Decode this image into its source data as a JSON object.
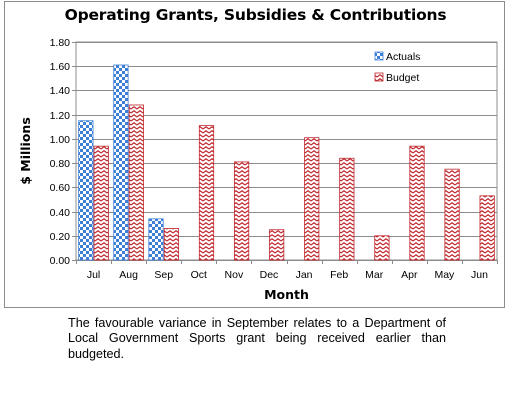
{
  "chart_data": {
    "type": "bar",
    "title": "Operating Grants, Subsidies & Contributions",
    "xlabel": "Month",
    "ylabel": "$ Millions",
    "categories": [
      "Jul",
      "Aug",
      "Sep",
      "Oct",
      "Nov",
      "Dec",
      "Jan",
      "Feb",
      "Mar",
      "Apr",
      "May",
      "Jun"
    ],
    "series": [
      {
        "name": "Actuals",
        "values": [
          1.15,
          1.61,
          0.34,
          null,
          null,
          null,
          null,
          null,
          null,
          null,
          null,
          null
        ],
        "color": "#3d7fd6",
        "pattern": "checkerboard"
      },
      {
        "name": "Budget",
        "values": [
          0.94,
          1.28,
          0.26,
          1.11,
          0.81,
          0.25,
          1.01,
          0.84,
          0.2,
          0.94,
          0.75,
          0.53
        ],
        "color": "#c0282e",
        "pattern": "zigzag"
      }
    ],
    "ylim": [
      0,
      1.8
    ],
    "yticks": [
      "0.00",
      "0.20",
      "0.40",
      "0.60",
      "0.80",
      "1.00",
      "1.20",
      "1.40",
      "1.60",
      "1.80"
    ],
    "grid": true,
    "legend_position": "top-right"
  },
  "caption": "The favourable variance in September relates to a Department of Local Government Sports grant being received earlier than budgeted."
}
